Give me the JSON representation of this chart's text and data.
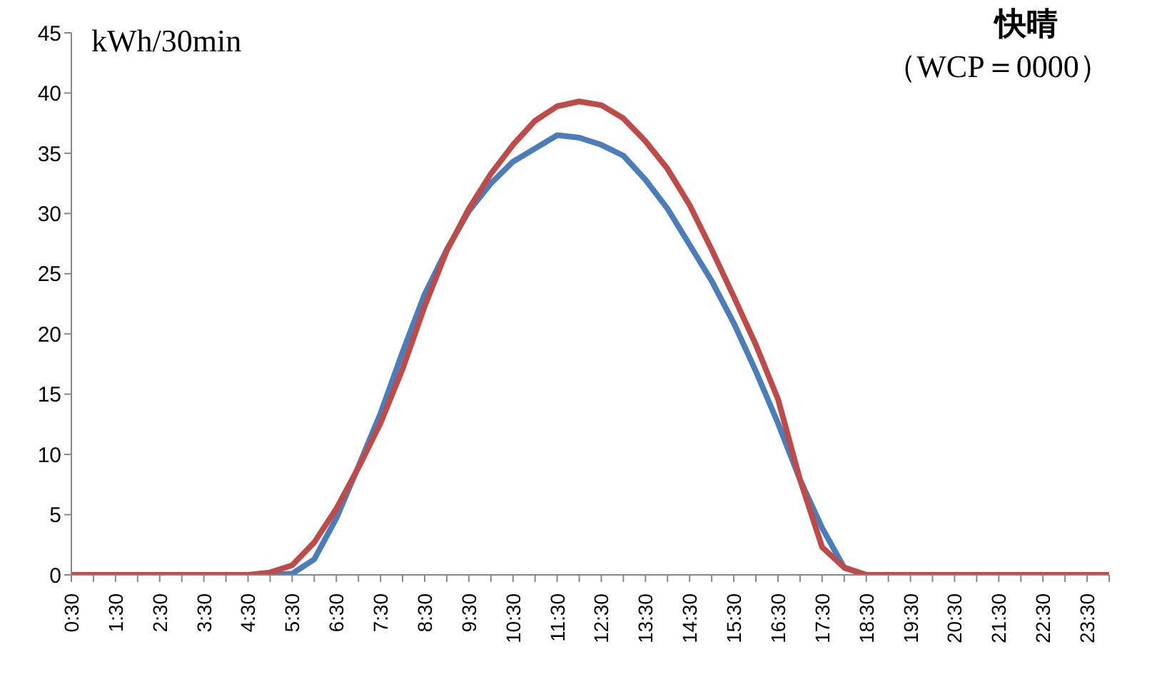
{
  "chart_data": {
    "type": "line",
    "title": "快晴",
    "subtitle": "（WCP＝0000）",
    "ylabel": "kWh/30min",
    "categories": [
      "0:30",
      null,
      "1:30",
      null,
      "2:30",
      null,
      "3:30",
      null,
      "4:30",
      null,
      "5:30",
      null,
      "6:30",
      null,
      "7:30",
      null,
      "8:30",
      null,
      "9:30",
      null,
      "10:30",
      null,
      "11:30",
      null,
      "12:30",
      null,
      "13:30",
      null,
      "14:30",
      null,
      "15:30",
      null,
      "16:30",
      null,
      "17:30",
      null,
      "18:30",
      null,
      "19:30",
      null,
      "20:30",
      null,
      "21:30",
      null,
      "22:30",
      null,
      "23:30",
      null
    ],
    "series": [
      {
        "color": "#4a7ebb",
        "values": [
          null,
          null,
          null,
          null,
          null,
          null,
          null,
          null,
          0,
          0,
          0.1,
          1.3,
          4.7,
          9.0,
          13.4,
          18.5,
          23.3,
          27.0,
          30.2,
          32.5,
          34.3,
          35.4,
          36.5,
          36.3,
          35.7,
          34.8,
          32.8,
          30.4,
          27.4,
          24.4,
          20.9,
          16.9,
          12.6,
          7.9,
          3.9,
          0.6,
          0,
          null,
          null,
          null,
          null,
          null,
          null,
          null,
          null,
          null,
          null,
          null
        ]
      },
      {
        "color": "#be4b48",
        "values": [
          0,
          0,
          0,
          0,
          0,
          0,
          0,
          0,
          0,
          0.2,
          0.8,
          2.7,
          5.5,
          8.9,
          12.6,
          17.1,
          22.3,
          26.9,
          30.4,
          33.3,
          35.7,
          37.7,
          38.9,
          39.3,
          39.0,
          37.9,
          36.0,
          33.7,
          30.7,
          27.0,
          23.1,
          19.1,
          14.6,
          7.9,
          2.3,
          0.6,
          0,
          0,
          0,
          0,
          0,
          0,
          0,
          0,
          0,
          0,
          0,
          0
        ]
      }
    ],
    "ylim": [
      0,
      45
    ],
    "yticks": [
      0,
      5,
      10,
      15,
      20,
      25,
      30,
      35,
      40,
      45
    ],
    "grid": false,
    "legend": false,
    "marker": "none",
    "line_style": "solid"
  }
}
